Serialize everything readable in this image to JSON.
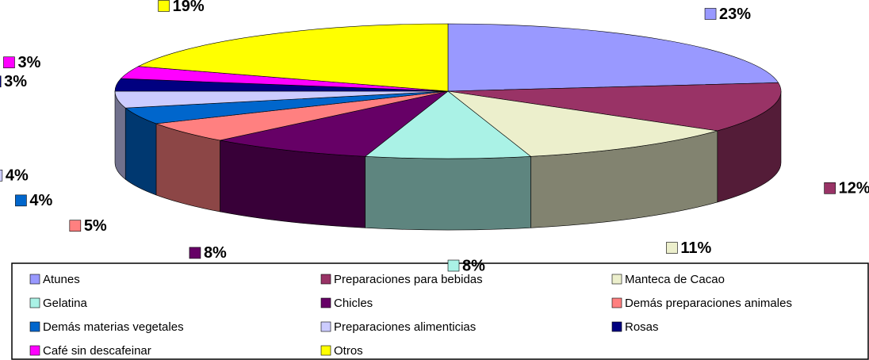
{
  "chart_data": {
    "type": "pie3d",
    "categories": [
      "Atunes",
      "Preparaciones para bebidas",
      "Manteca de Cacao",
      "Gelatina",
      "Chicles",
      "Demás preparaciones animales",
      "Demás materias vegetales",
      "Preparaciones alimenticias",
      "Rosas",
      "Café sin descafeinar",
      "Otros"
    ],
    "values": [
      23,
      12,
      11,
      8,
      8,
      5,
      4,
      4,
      3,
      3,
      19
    ],
    "value_labels": [
      "23%",
      "12%",
      "11%",
      "8%",
      "8%",
      "5%",
      "4%",
      "4%",
      "3%",
      "3%",
      "19%"
    ],
    "colors": [
      "#9999ff",
      "#993366",
      "#ecefcc",
      "#aaf2e6",
      "#660066",
      "#ff8080",
      "#0066cc",
      "#ccccff",
      "#000080",
      "#ff00ff",
      "#ffff00"
    ],
    "legend": "bottom"
  }
}
